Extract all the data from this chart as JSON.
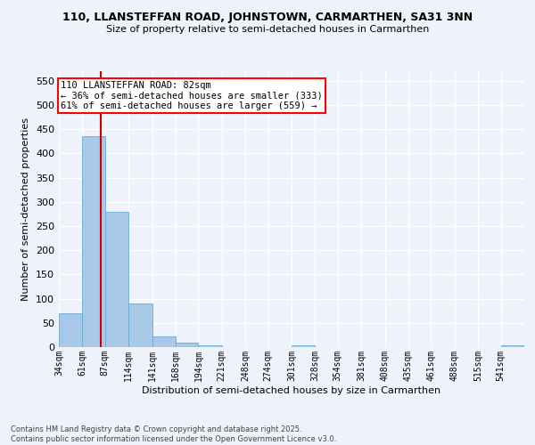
{
  "title": "110, LLANSTEFFAN ROAD, JOHNSTOWN, CARMARTHEN, SA31 3NN",
  "subtitle": "Size of property relative to semi-detached houses in Carmarthen",
  "xlabel": "Distribution of semi-detached houses by size in Carmarthen",
  "ylabel": "Number of semi-detached properties",
  "bar_color": "#a8c8e8",
  "bar_edge_color": "#6aaad4",
  "background_color": "#eef2fa",
  "grid_color": "#ffffff",
  "bins": [
    34,
    61,
    87,
    114,
    141,
    168,
    194,
    221,
    248,
    274,
    301,
    328,
    354,
    381,
    408,
    435,
    461,
    488,
    515,
    541,
    568
  ],
  "heights": [
    70,
    435,
    280,
    90,
    22,
    10,
    4,
    0,
    0,
    0,
    4,
    0,
    0,
    0,
    0,
    0,
    0,
    0,
    0,
    4
  ],
  "property_size": 82,
  "property_line_color": "#cc0000",
  "ylim": [
    0,
    570
  ],
  "yticks": [
    0,
    50,
    100,
    150,
    200,
    250,
    300,
    350,
    400,
    450,
    500,
    550
  ],
  "annotation_title": "110 LLANSTEFFAN ROAD: 82sqm",
  "annotation_line1": "← 36% of semi-detached houses are smaller (333)",
  "annotation_line2": "61% of semi-detached houses are larger (559) →",
  "footer_line1": "Contains HM Land Registry data © Crown copyright and database right 2025.",
  "footer_line2": "Contains public sector information licensed under the Open Government Licence v3.0."
}
